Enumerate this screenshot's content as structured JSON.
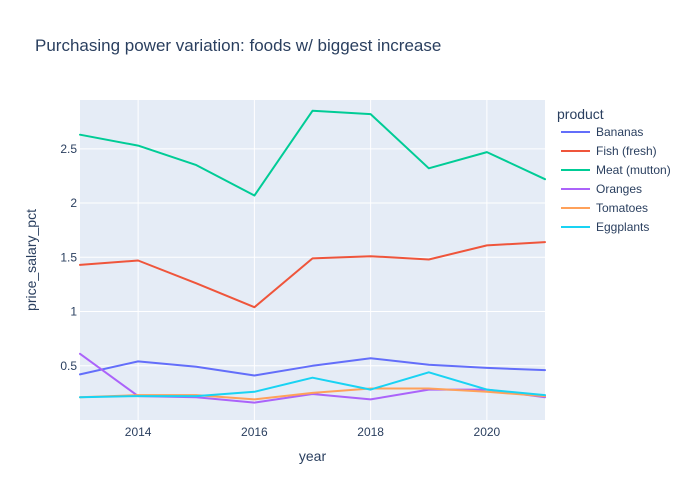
{
  "chart_data": {
    "type": "line",
    "title": "Purchasing power variation: foods w/ biggest increase",
    "xlabel": "year",
    "ylabel": "price_salary_pct",
    "legend_title": "product",
    "legend_position": "right",
    "xlim": [
      2013,
      2021
    ],
    "ylim": [
      0.0,
      2.95
    ],
    "xticks": [
      2014,
      2016,
      2018,
      2020
    ],
    "yticks": [
      0.5,
      1,
      1.5,
      2,
      2.5
    ],
    "ytick_labels": [
      "0.5",
      "1",
      "1.5",
      "2",
      "2.5"
    ],
    "x": [
      2013,
      2014,
      2015,
      2016,
      2017,
      2018,
      2019,
      2020,
      2021
    ],
    "series": [
      {
        "name": "Bananas",
        "color": "#636efa",
        "values": [
          0.42,
          0.54,
          0.49,
          0.41,
          0.5,
          0.57,
          0.51,
          0.48,
          0.46
        ]
      },
      {
        "name": "Fish (fresh)",
        "color": "#EF553B",
        "values": [
          1.43,
          1.47,
          1.26,
          1.04,
          1.49,
          1.51,
          1.48,
          1.61,
          1.64
        ]
      },
      {
        "name": "Meat (mutton)",
        "color": "#00cc96",
        "values": [
          2.63,
          2.53,
          2.35,
          2.07,
          2.85,
          2.82,
          2.32,
          2.47,
          2.22
        ]
      },
      {
        "name": "Oranges",
        "color": "#ab63fa",
        "values": [
          0.61,
          0.22,
          0.21,
          0.16,
          0.24,
          0.19,
          0.28,
          0.28,
          0.21
        ]
      },
      {
        "name": "Tomatoes",
        "color": "#FFA15A",
        "values": [
          0.21,
          0.23,
          0.23,
          0.19,
          0.25,
          0.29,
          0.29,
          0.26,
          0.22
        ]
      },
      {
        "name": "Eggplants",
        "color": "#19d3f3",
        "values": [
          0.21,
          0.22,
          0.22,
          0.26,
          0.39,
          0.28,
          0.44,
          0.28,
          0.23
        ]
      }
    ]
  }
}
